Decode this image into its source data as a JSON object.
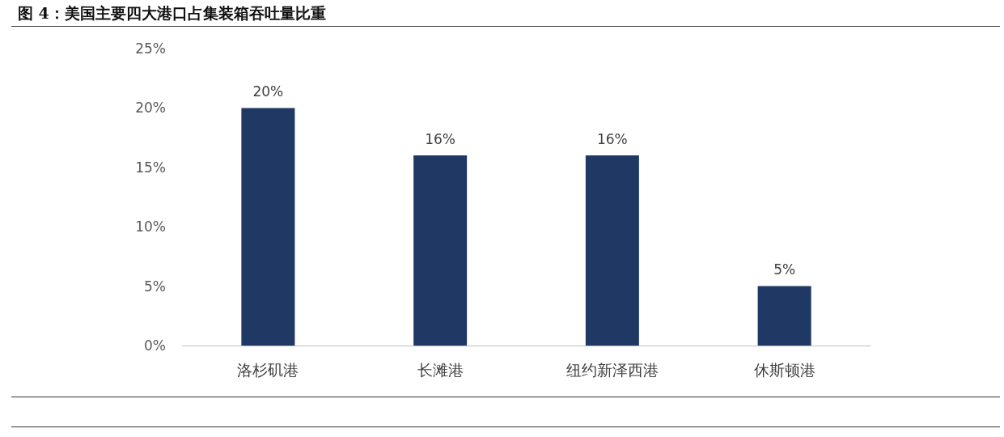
{
  "chart_data": {
    "type": "bar",
    "title": "图 4：美国主要四大港口占集装箱吞吐量比重",
    "categories": [
      "洛杉矶港",
      "长滩港",
      "纽约新泽西港",
      "休斯顿港"
    ],
    "values": [
      20,
      16,
      16,
      5
    ],
    "color": "#1f3864",
    "ylim": [
      0,
      25
    ],
    "yticks": [
      {
        "value": 0,
        "label": "0%"
      },
      {
        "value": 5,
        "label": "5%"
      },
      {
        "value": 10,
        "label": "10%"
      },
      {
        "value": 15,
        "label": "15%"
      },
      {
        "value": 20,
        "label": "20%"
      },
      {
        "value": 25,
        "label": "25%"
      }
    ],
    "value_labels": [
      "20%",
      "16%",
      "16%",
      "5%"
    ]
  }
}
